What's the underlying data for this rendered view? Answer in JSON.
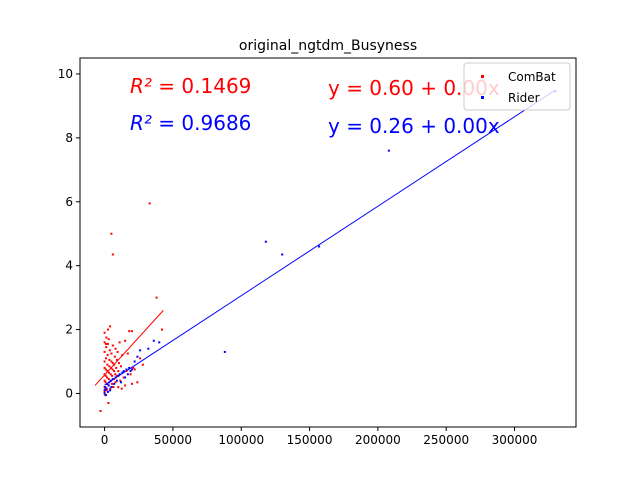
{
  "chart_data": {
    "type": "scatter",
    "title": "original_ngtdm_Busyness",
    "xlabel": "",
    "ylabel": "",
    "xlim": [
      -18000,
      345000
    ],
    "ylim": [
      -1.05,
      10.5
    ],
    "xticks": [
      0,
      50000,
      100000,
      150000,
      200000,
      250000,
      300000
    ],
    "xtick_labels": [
      "0",
      "50000",
      "100000",
      "150000",
      "200000",
      "250000",
      "300000"
    ],
    "yticks": [
      0,
      2,
      4,
      6,
      8,
      10
    ],
    "ytick_labels": [
      "0",
      "2",
      "4",
      "6",
      "8",
      "10"
    ],
    "grid": false,
    "legend_position": "top-right",
    "colors": {
      "ComBat": "#ff0000",
      "Rider": "#0000ff"
    },
    "series": [
      {
        "name": "ComBat",
        "color": "#ff0000",
        "r2_label": "R² = 0.1469",
        "equation_label": "y = 0.60 + 0.00x",
        "fit_line": [
          [
            -7000,
            0.25
          ],
          [
            43000,
            2.6
          ]
        ],
        "points": [
          [
            -3000,
            -0.55
          ],
          [
            0,
            0.05
          ],
          [
            0,
            0.2
          ],
          [
            0,
            0.4
          ],
          [
            0,
            0.6
          ],
          [
            0,
            0.8
          ],
          [
            0,
            1.0
          ],
          [
            0,
            1.3
          ],
          [
            0,
            1.6
          ],
          [
            0,
            1.9
          ],
          [
            500,
            -0.05
          ],
          [
            500,
            0.15
          ],
          [
            700,
            0.35
          ],
          [
            800,
            0.55
          ],
          [
            900,
            0.75
          ],
          [
            1000,
            1.1
          ],
          [
            1200,
            1.45
          ],
          [
            1300,
            1.75
          ],
          [
            1500,
            0.1
          ],
          [
            1600,
            0.3
          ],
          [
            1800,
            0.5
          ],
          [
            2000,
            0.7
          ],
          [
            2000,
            0.9
          ],
          [
            2200,
            1.2
          ],
          [
            2400,
            1.55
          ],
          [
            2500,
            2.0
          ],
          [
            2800,
            -0.3
          ],
          [
            3000,
            0.25
          ],
          [
            3000,
            0.45
          ],
          [
            3200,
            0.65
          ],
          [
            3500,
            0.85
          ],
          [
            3500,
            1.05
          ],
          [
            3800,
            1.35
          ],
          [
            4000,
            2.1
          ],
          [
            4200,
            0.15
          ],
          [
            4500,
            0.4
          ],
          [
            4500,
            0.6
          ],
          [
            4800,
            0.8
          ],
          [
            5000,
            1.0
          ],
          [
            5000,
            1.25
          ],
          [
            5000,
            5.0
          ],
          [
            5500,
            0.3
          ],
          [
            5500,
            0.55
          ],
          [
            5800,
            0.75
          ],
          [
            6000,
            0.95
          ],
          [
            6000,
            1.5
          ],
          [
            6000,
            4.35
          ],
          [
            6500,
            0.2
          ],
          [
            6800,
            0.45
          ],
          [
            7000,
            0.7
          ],
          [
            7000,
            0.9
          ],
          [
            7500,
            1.15
          ],
          [
            7800,
            0.6
          ],
          [
            8000,
            0.35
          ],
          [
            8000,
            1.4
          ],
          [
            8500,
            0.8
          ],
          [
            9000,
            0.55
          ],
          [
            9000,
            1.05
          ],
          [
            9500,
            1.3
          ],
          [
            10000,
            0.2
          ],
          [
            10000,
            0.7
          ],
          [
            10500,
            0.95
          ],
          [
            11000,
            1.6
          ],
          [
            11500,
            0.4
          ],
          [
            12000,
            0.85
          ],
          [
            12500,
            0.15
          ],
          [
            13000,
            1.2
          ],
          [
            14000,
            0.5
          ],
          [
            15000,
            1.65
          ],
          [
            16000,
            0.7
          ],
          [
            17000,
            1.25
          ],
          [
            18000,
            1.95
          ],
          [
            19000,
            0.6
          ],
          [
            20000,
            1.95
          ],
          [
            20000,
            0.3
          ],
          [
            22000,
            0.75
          ],
          [
            24000,
            0.35
          ],
          [
            26000,
            1.1
          ],
          [
            28000,
            0.9
          ],
          [
            33000,
            5.95
          ],
          [
            38000,
            3.0
          ],
          [
            42000,
            2.0
          ],
          [
            15000,
            0.25
          ],
          [
            21000,
            0.8
          ],
          [
            3000,
            1.7
          ],
          [
            1000,
            1.55
          ]
        ]
      },
      {
        "name": "Rider",
        "color": "#0000ff",
        "r2_label": "R² = 0.9686",
        "equation_label": "y = 0.26 + 0.00x",
        "fit_line": [
          [
            0,
            0.26
          ],
          [
            330000,
            9.5
          ]
        ],
        "points": [
          [
            0,
            0.0
          ],
          [
            0,
            0.1
          ],
          [
            500,
            0.2
          ],
          [
            1000,
            -0.05
          ],
          [
            1500,
            0.15
          ],
          [
            2000,
            0.3
          ],
          [
            2500,
            0.05
          ],
          [
            3000,
            0.25
          ],
          [
            3500,
            0.35
          ],
          [
            4000,
            0.1
          ],
          [
            4500,
            0.4
          ],
          [
            5000,
            0.2
          ],
          [
            6000,
            0.45
          ],
          [
            7000,
            0.3
          ],
          [
            8000,
            0.5
          ],
          [
            9000,
            0.4
          ],
          [
            10000,
            0.55
          ],
          [
            11000,
            0.6
          ],
          [
            12000,
            0.35
          ],
          [
            13000,
            0.65
          ],
          [
            14000,
            0.7
          ],
          [
            15000,
            0.5
          ],
          [
            16000,
            0.75
          ],
          [
            17000,
            0.6
          ],
          [
            18000,
            0.8
          ],
          [
            19000,
            0.7
          ],
          [
            20000,
            0.75
          ],
          [
            22000,
            1.0
          ],
          [
            24000,
            1.15
          ],
          [
            26000,
            1.35
          ],
          [
            32000,
            1.4
          ],
          [
            36000,
            1.65
          ],
          [
            40000,
            1.6
          ],
          [
            88000,
            1.3
          ],
          [
            118000,
            4.75
          ],
          [
            130000,
            4.35
          ],
          [
            157000,
            4.6
          ],
          [
            208000,
            7.6
          ],
          [
            330000,
            9.45
          ]
        ]
      }
    ]
  }
}
